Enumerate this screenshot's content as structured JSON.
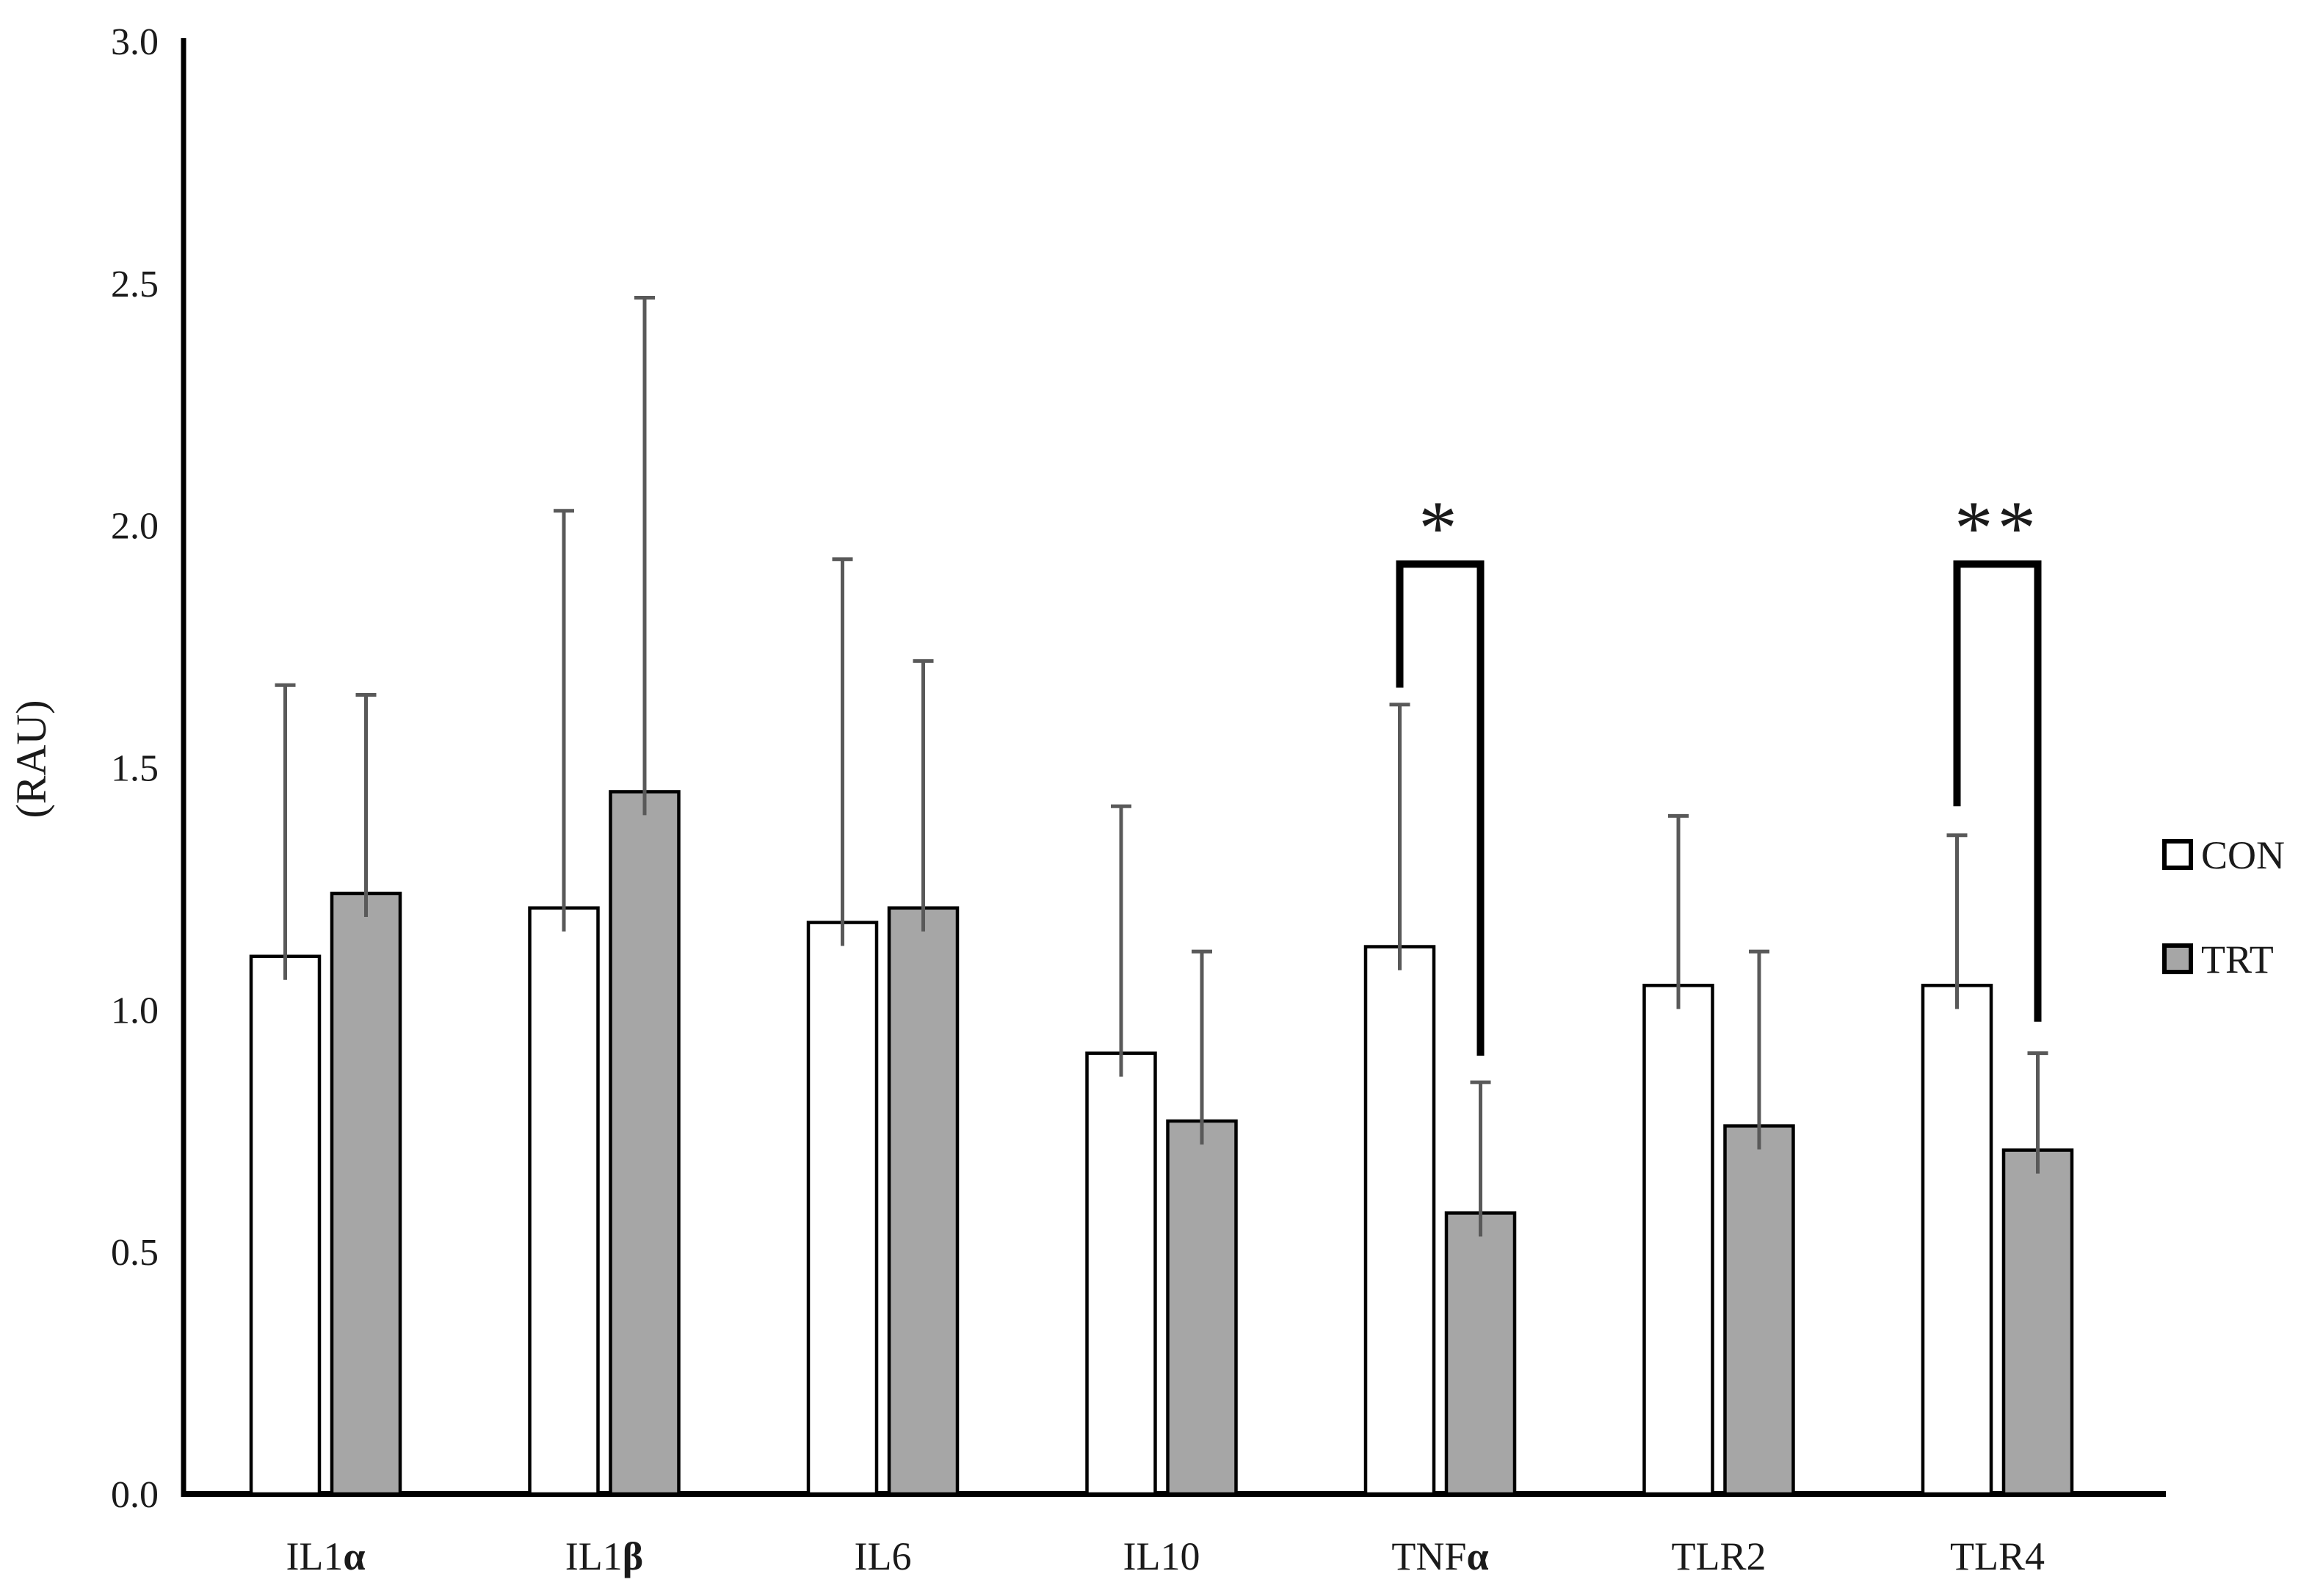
{
  "chart_data": {
    "type": "bar",
    "title": "",
    "xlabel": "",
    "ylabel": "(RAU)",
    "ylim": [
      0,
      3
    ],
    "grid": false,
    "ytick_labels": [
      "0.0",
      "0.5",
      "1.0",
      "1.5",
      "2.0",
      "2.5",
      "3.0"
    ],
    "yticks": [
      0.0,
      0.5,
      1.0,
      1.5,
      2.0,
      2.5,
      3.0
    ],
    "categories": [
      "IL1α",
      "IL1β",
      "IL6",
      "IL10",
      "TNFα",
      "TLR2",
      "TLR4"
    ],
    "series": [
      {
        "name": "CON",
        "fill": "#ffffff",
        "values": [
          1.11,
          1.21,
          1.18,
          0.91,
          1.13,
          1.05,
          1.05
        ],
        "errors": [
          0.56,
          0.82,
          0.75,
          0.51,
          0.5,
          0.35,
          0.31
        ]
      },
      {
        "name": "TRT",
        "fill": "#a6a6a6",
        "values": [
          1.24,
          1.45,
          1.21,
          0.77,
          0.58,
          0.76,
          0.71
        ],
        "errors": [
          0.41,
          1.02,
          0.51,
          0.35,
          0.27,
          0.36,
          0.2
        ]
      }
    ],
    "significance": [
      {
        "category": "TNFα",
        "label": "*",
        "bar_y": 1.92,
        "left_drop_to": 1.665,
        "right_drop_to": 0.905
      },
      {
        "category": "TLR4",
        "label": "**",
        "bar_y": 1.92,
        "left_drop_to": 1.42,
        "right_drop_to": 0.975
      }
    ],
    "legend": {
      "position": "right",
      "entries": [
        "CON",
        "TRT"
      ]
    }
  },
  "colors": {
    "con_fill": "#ffffff",
    "trt_fill": "#a6a6a6",
    "bar_stroke": "#000000",
    "error_bar": "#595959",
    "axis": "#000000",
    "text": "#1a1a1a"
  }
}
